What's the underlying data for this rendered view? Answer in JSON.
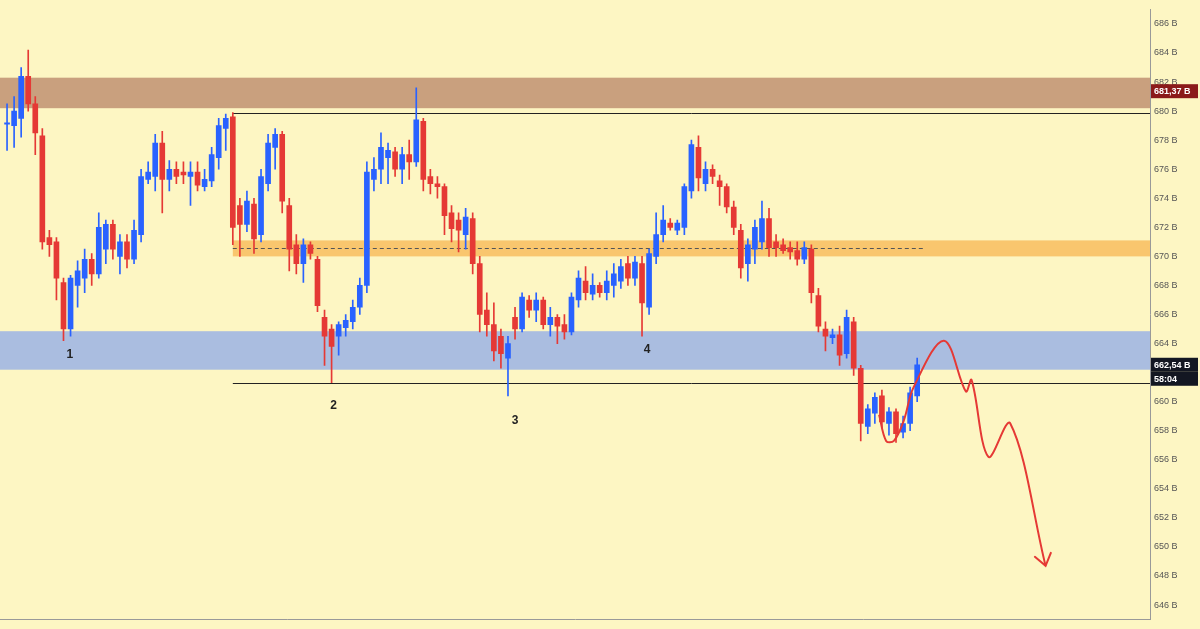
{
  "chart_data": {
    "type": "candlestick",
    "tick_labels": "y",
    "grid": false,
    "colors": {
      "up": "#2962ff",
      "down": "#e53935"
    },
    "xlim": [
      -1,
      162
    ],
    "ylim": [
      645,
      687
    ],
    "yticks": [
      {
        "value": 646,
        "label": "646 B"
      },
      {
        "value": 648,
        "label": "648 B"
      },
      {
        "value": 650,
        "label": "650 B"
      },
      {
        "value": 652,
        "label": "652 B"
      },
      {
        "value": 654,
        "label": "654 B"
      },
      {
        "value": 656,
        "label": "656 B"
      },
      {
        "value": 658,
        "label": "658 B"
      },
      {
        "value": 660,
        "label": "660 B"
      },
      {
        "value": 664,
        "label": "664 B"
      },
      {
        "value": 666,
        "label": "666 B"
      },
      {
        "value": 668,
        "label": "668 B"
      },
      {
        "value": 670,
        "label": "670 B"
      },
      {
        "value": 672,
        "label": "672 B"
      },
      {
        "value": 674,
        "label": "674 B"
      },
      {
        "value": 676,
        "label": "676 B"
      },
      {
        "value": 678,
        "label": "678 B"
      },
      {
        "value": 680,
        "label": "680 B"
      },
      {
        "value": 682,
        "label": "682 B"
      },
      {
        "value": 684,
        "label": "684 B"
      },
      {
        "value": 686,
        "label": "686 B"
      }
    ],
    "x": [
      0,
      1,
      2,
      3,
      4,
      5,
      6,
      7,
      8,
      9,
      10,
      11,
      12,
      13,
      14,
      15,
      16,
      17,
      18,
      19,
      20,
      21,
      22,
      23,
      24,
      25,
      26,
      27,
      28,
      29,
      30,
      31,
      32,
      33,
      34,
      35,
      36,
      37,
      38,
      39,
      40,
      41,
      42,
      43,
      44,
      45,
      46,
      47,
      48,
      49,
      50,
      51,
      52,
      53,
      54,
      55,
      56,
      57,
      58,
      59,
      60,
      61,
      62,
      63,
      64,
      65,
      66,
      67,
      68,
      69,
      70,
      71,
      72,
      73,
      74,
      75,
      76,
      77,
      78,
      79,
      80,
      81,
      82,
      83,
      84,
      85,
      86,
      87,
      88,
      89,
      90,
      91,
      92,
      93,
      94,
      95,
      96,
      97,
      98,
      99,
      100,
      101,
      102,
      103,
      104,
      105,
      106,
      107,
      108,
      109,
      110,
      111,
      112,
      113,
      114,
      115,
      116,
      117,
      118,
      119,
      120,
      121,
      122,
      123,
      124,
      125,
      126,
      127,
      128,
      129
    ],
    "candles": {
      "open": [
        679.1,
        679,
        679.5,
        682.4,
        680.5,
        678.3,
        671.3,
        671,
        668.2,
        665,
        668,
        668.5,
        669.8,
        668.8,
        670.5,
        672.2,
        670,
        671,
        669.8,
        671.5,
        675.3,
        675.5,
        677.8,
        675.3,
        676,
        675.8,
        675.5,
        675.8,
        674.8,
        675.2,
        676.8,
        678.8,
        679.6,
        673.5,
        672.2,
        673.6,
        671.5,
        675,
        677.5,
        678.4,
        673.5,
        670.8,
        669.5,
        670.8,
        669.8,
        665.8,
        665,
        664.5,
        665.1,
        665.5,
        666.5,
        668,
        675.3,
        676,
        676.8,
        677.2,
        676,
        677,
        676.5,
        679.3,
        675.5,
        675,
        674.8,
        673,
        672.5,
        671.5,
        672.6,
        669.5,
        666.3,
        665.3,
        664.5,
        663,
        665.8,
        665,
        667,
        666.3,
        667,
        665.3,
        665.8,
        665.3,
        664.8,
        667,
        668.3,
        667.4,
        668,
        667.5,
        668,
        668.3,
        669.5,
        668.5,
        669.5,
        666.5,
        670,
        671.5,
        672.3,
        671.8,
        672,
        674.5,
        677.5,
        675,
        676,
        675.2,
        674.8,
        673.4,
        671.8,
        669.5,
        670.5,
        671,
        672.6,
        671,
        670.8,
        670.6,
        670.4,
        669.8,
        670.5,
        667.3,
        665,
        664.4,
        664.6,
        663.3,
        665.5,
        662.3,
        658.3,
        659.2,
        660.4,
        658.5,
        659.3,
        657.9,
        658.5,
        660.4
      ],
      "high": [
        680.5,
        681,
        683,
        684.2,
        681,
        678.8,
        671.8,
        671.3,
        668.5,
        668.7,
        669.7,
        670.5,
        670.2,
        673,
        672.5,
        672.5,
        671.5,
        671.5,
        672.5,
        676,
        676.5,
        678.4,
        678.6,
        676.6,
        676.5,
        676.5,
        676.5,
        676.5,
        676,
        677.5,
        679.5,
        679.8,
        679.9,
        674,
        674.5,
        674,
        676,
        678.4,
        678.8,
        678.6,
        674,
        671.5,
        671.2,
        671,
        670,
        666.3,
        665.3,
        665.5,
        666,
        667,
        668.5,
        676.5,
        676.8,
        678.5,
        677.8,
        677.5,
        677.5,
        678,
        681.6,
        679.5,
        676,
        675.5,
        675,
        673.5,
        673,
        673.3,
        673,
        670,
        667.5,
        666.8,
        665,
        664.5,
        666.5,
        667.5,
        667.3,
        667.5,
        667.2,
        666.5,
        666,
        666,
        667.5,
        669,
        669.3,
        668.8,
        668.2,
        669,
        669.5,
        669.8,
        670,
        670,
        670,
        670.5,
        673,
        673.5,
        672.6,
        672.5,
        675,
        678,
        678.3,
        676.5,
        676.3,
        675.6,
        675,
        673.8,
        672.2,
        671.2,
        672.5,
        673.8,
        673.3,
        671.5,
        671.2,
        671,
        671,
        671,
        670.8,
        667.8,
        665.5,
        665,
        665.2,
        666.3,
        665.8,
        662.5,
        659.8,
        660.6,
        660.8,
        659.6,
        659.5,
        659,
        661,
        663
      ],
      "low": [
        677.3,
        677.5,
        678.2,
        680,
        677,
        670.5,
        670,
        667,
        664.2,
        664.5,
        666.5,
        667.5,
        668,
        668.5,
        669.5,
        669.8,
        668.8,
        669.2,
        669.5,
        671,
        675,
        674.5,
        673,
        674.5,
        675,
        675,
        673.5,
        674.5,
        674.5,
        674.8,
        676,
        677.3,
        670.8,
        670,
        671.7,
        670.2,
        671,
        674.5,
        676,
        673,
        669,
        668.8,
        668.2,
        669.8,
        666.2,
        662.5,
        661.3,
        663.2,
        664.5,
        665,
        666,
        667.5,
        674.5,
        675,
        675,
        675.5,
        675,
        675.3,
        676.2,
        674.5,
        674.3,
        674,
        671.5,
        671,
        670.3,
        670.5,
        668.8,
        664.8,
        664.5,
        662.8,
        662.3,
        660.4,
        664.3,
        664.8,
        665.8,
        665.5,
        665,
        664.5,
        664,
        664.3,
        664.6,
        666.5,
        667,
        667,
        667.2,
        667,
        667.2,
        667.8,
        668,
        668,
        664.5,
        666,
        669.5,
        671,
        671.8,
        671.5,
        671.5,
        674,
        674.5,
        674.5,
        675,
        673.5,
        673,
        671.5,
        668.5,
        668.3,
        669.5,
        670.5,
        670,
        670,
        670.2,
        669.8,
        669.4,
        669.5,
        666.8,
        664.8,
        663.5,
        664,
        662.5,
        663,
        661.8,
        657.3,
        657.8,
        658.5,
        658.2,
        657.7,
        657.2,
        657.5,
        658,
        660
      ],
      "close": [
        679.2,
        680,
        682.4,
        680.5,
        678.5,
        671,
        670.8,
        668.5,
        665,
        668.5,
        669,
        669.8,
        668.8,
        672,
        672.2,
        670.5,
        671,
        669.8,
        671.8,
        675.5,
        675.8,
        677.8,
        675.3,
        676,
        675.5,
        675.6,
        675.8,
        674.9,
        675.3,
        677,
        679,
        679.5,
        672,
        672.2,
        673.8,
        671.2,
        675.5,
        677.8,
        678.4,
        673.8,
        670.5,
        669.5,
        670.8,
        670.2,
        666.6,
        664.5,
        663.8,
        665.3,
        665.6,
        666.5,
        668,
        675.8,
        676,
        677.5,
        677.3,
        676,
        677,
        676.5,
        679.4,
        675.3,
        675,
        674.8,
        672.8,
        671.9,
        671.8,
        672.7,
        669.5,
        666,
        665.3,
        663.5,
        663.3,
        664,
        665,
        667.2,
        666.3,
        667,
        665.3,
        665.8,
        665.2,
        664.8,
        667.2,
        668.5,
        667.5,
        668,
        667.5,
        668.3,
        668.8,
        669.3,
        668.5,
        669.6,
        666.8,
        670.2,
        671.5,
        672.5,
        672,
        672.3,
        674.8,
        677.7,
        675.4,
        676,
        675.5,
        674.8,
        673.4,
        672,
        669.2,
        670.8,
        672,
        672.6,
        670.6,
        670.6,
        670.4,
        670.3,
        669.8,
        670.6,
        667.5,
        665.2,
        664.5,
        664.6,
        663.2,
        665.8,
        662.3,
        658.5,
        659.5,
        660.3,
        658.6,
        659.3,
        657.8,
        658.5,
        660.6,
        662.54
      ]
    },
    "zones": [
      {
        "from": 680.2,
        "to": 682.3,
        "x_start": -1,
        "color": "#c9a07e"
      },
      {
        "from": 670.0,
        "to": 671.1,
        "x_start": 32,
        "color": "#f9c66e"
      },
      {
        "from": 662.2,
        "to": 664.85,
        "x_start": -1,
        "color": "#aabde0"
      }
    ],
    "levels": [
      {
        "value": 679.9,
        "x_start": 32,
        "line_style": "solid",
        "color": "#222222"
      },
      {
        "value": 661.3,
        "x_start": 32,
        "line_style": "solid",
        "color": "#222222"
      },
      {
        "value": 670.6,
        "x_start": 32,
        "x_end": 130,
        "line_style": "dashed",
        "color": "#555555"
      }
    ],
    "annotations": [
      {
        "text": "1",
        "x": 8.9,
        "y": 663.2
      },
      {
        "text": "2",
        "x": 46.3,
        "y": 659.7
      },
      {
        "text": "3",
        "x": 72,
        "y": 658.7
      },
      {
        "text": "4",
        "x": 90.7,
        "y": 663.6
      }
    ],
    "projection": {
      "color": "#e53935",
      "x": [
        123.6,
        124.6,
        125.7,
        127.1,
        128.5,
        132.8,
        135.9,
        136.7,
        139.1,
        142.2,
        147.2
      ],
      "y": [
        659.1,
        657.3,
        657.3,
        658.7,
        661.0,
        664.2,
        660.7,
        661.5,
        656.2,
        658.5,
        648.7
      ]
    },
    "price_labels": [
      {
        "value": 681.37,
        "label": "681,37 B",
        "color": "#8b1a1a"
      },
      {
        "value": 662.54,
        "label": "662,54 B",
        "sub_label": "58:04",
        "color": "#131722"
      }
    ]
  }
}
